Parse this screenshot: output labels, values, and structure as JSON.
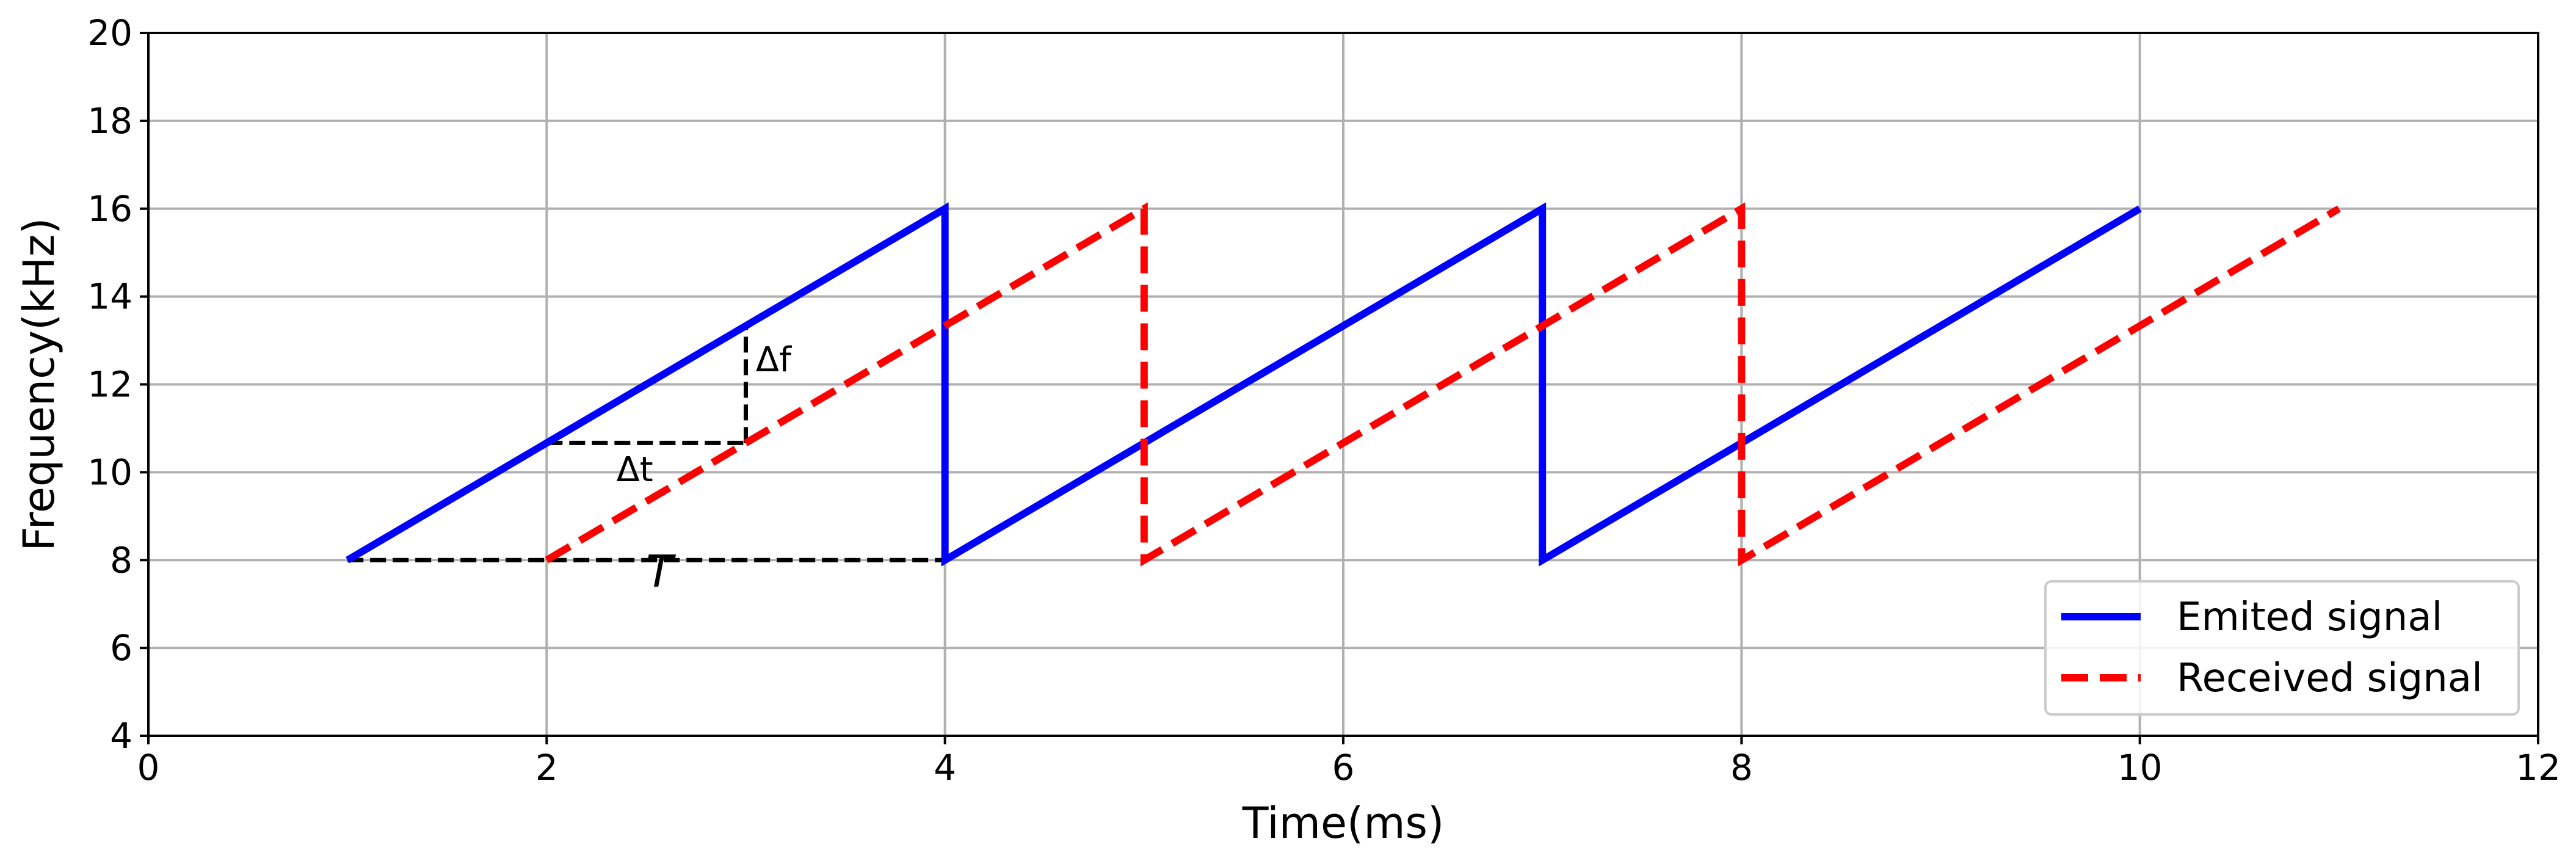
{
  "chart_data": {
    "type": "line",
    "xlabel": "Time(ms)",
    "ylabel": "Frequency(kHz)",
    "xlim": [
      0,
      12
    ],
    "ylim": [
      4,
      20
    ],
    "xticks": [
      "0",
      "2",
      "4",
      "6",
      "8",
      "10",
      "12"
    ],
    "yticks": [
      "4",
      "6",
      "8",
      "10",
      "12",
      "14",
      "16",
      "18",
      "20"
    ],
    "grid": true,
    "legend_position": "bottom-right",
    "series": [
      {
        "name": "Emited signal",
        "color": "#0000ff",
        "style": "solid",
        "x": [
          1,
          4,
          4,
          7,
          7,
          10
        ],
        "y": [
          8,
          16,
          8,
          16,
          8,
          16
        ]
      },
      {
        "name": "Received signal",
        "color": "#ff0000",
        "style": "dashed",
        "x": [
          2,
          5,
          5,
          8,
          8,
          11
        ],
        "y": [
          8,
          16,
          8,
          16,
          8,
          16
        ]
      }
    ],
    "annotations": [
      {
        "text": "Δf",
        "x": 3.05,
        "y": 12.3
      },
      {
        "text": "Δt",
        "x": 2.35,
        "y": 9.8
      },
      {
        "text": "T",
        "x": 2.5,
        "y": 7.4,
        "italic": true
      }
    ],
    "guide_lines": [
      {
        "x": [
          1,
          4
        ],
        "y": [
          8,
          8
        ]
      },
      {
        "x": [
          2,
          3
        ],
        "y": [
          10.667,
          10.667
        ]
      },
      {
        "x": [
          3,
          3
        ],
        "y": [
          10.667,
          13.333
        ]
      }
    ]
  }
}
